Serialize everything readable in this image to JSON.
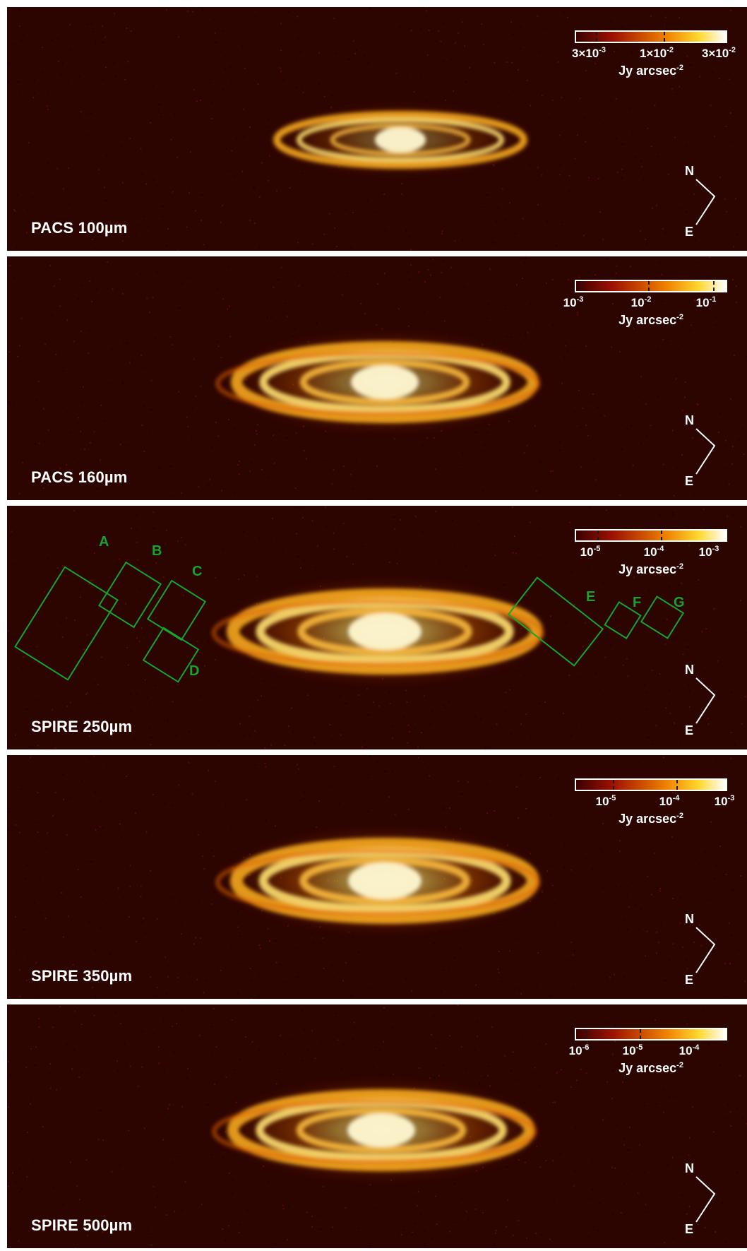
{
  "figure": {
    "panels": [
      {
        "label": "PACS 100µm",
        "colorbar": {
          "ticks": [
            {
              "base": "3×10",
              "exp": "-3"
            },
            {
              "base": "1×10",
              "exp": "-2"
            },
            {
              "base": "3×10",
              "exp": "-2"
            }
          ],
          "unit_base": "Jy arcsec",
          "unit_exp": "-2"
        },
        "compass": {
          "north": "N",
          "east": "E"
        }
      },
      {
        "label": "PACS 160µm",
        "colorbar": {
          "ticks": [
            {
              "base": "10",
              "exp": "-3"
            },
            {
              "base": "10",
              "exp": "-2"
            },
            {
              "base": "10",
              "exp": "-1"
            }
          ],
          "unit_base": "Jy arcsec",
          "unit_exp": "-2"
        },
        "compass": {
          "north": "N",
          "east": "E"
        }
      },
      {
        "label": "SPIRE 250µm",
        "colorbar": {
          "ticks": [
            {
              "base": "10",
              "exp": "-5"
            },
            {
              "base": "10",
              "exp": "-4"
            },
            {
              "base": "10",
              "exp": "-3"
            }
          ],
          "unit_base": "Jy arcsec",
          "unit_exp": "-2"
        },
        "compass": {
          "north": "N",
          "east": "E"
        },
        "regions": [
          "A",
          "B",
          "C",
          "D",
          "E",
          "F",
          "G"
        ],
        "region_color": "#1aa32a"
      },
      {
        "label": "SPIRE 350µm",
        "colorbar": {
          "ticks": [
            {
              "base": "10",
              "exp": "-5"
            },
            {
              "base": "10",
              "exp": "-4"
            },
            {
              "base": "10",
              "exp": "-3"
            }
          ],
          "unit_base": "Jy arcsec",
          "unit_exp": "-2"
        },
        "compass": {
          "north": "N",
          "east": "E"
        }
      },
      {
        "label": "SPIRE 500µm",
        "colorbar": {
          "ticks": [
            {
              "base": "10",
              "exp": "-6"
            },
            {
              "base": "10",
              "exp": "-5"
            },
            {
              "base": "10",
              "exp": "-4"
            }
          ],
          "unit_base": "Jy arcsec",
          "unit_exp": "-2"
        },
        "compass": {
          "north": "N",
          "east": "E"
        }
      }
    ],
    "colormap": {
      "low": "#3a0000",
      "mid": "#f08000",
      "high": "#ffffff"
    },
    "background_color": "#2c0400"
  }
}
